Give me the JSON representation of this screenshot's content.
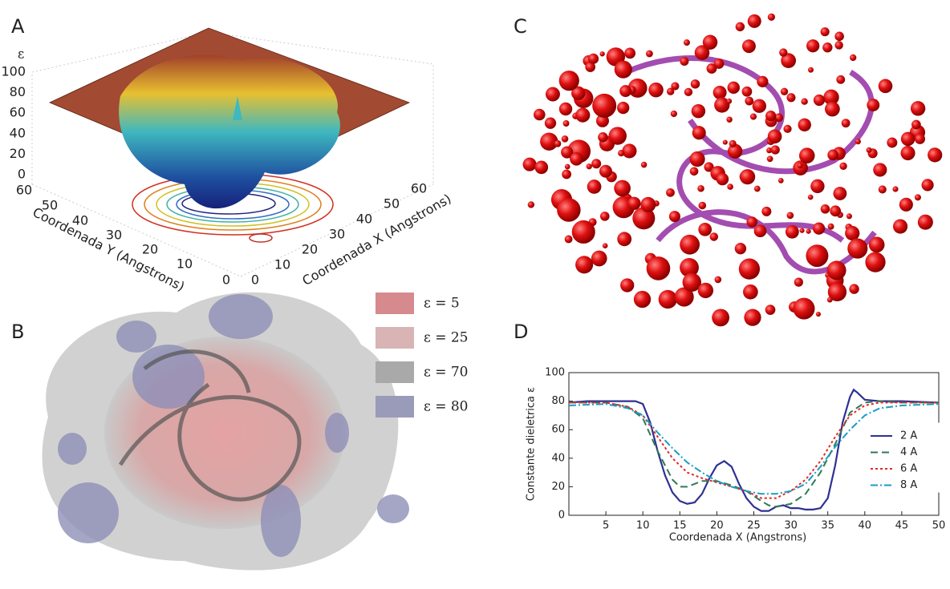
{
  "panel_a": {
    "label": "A",
    "z_label": "ε",
    "zticks": [
      0,
      20,
      40,
      60,
      80,
      100
    ],
    "y_label": "Coordenada Y (Angstrons)",
    "yticks": [
      0,
      10,
      20,
      30,
      40,
      50,
      60
    ],
    "x_label": "Coordenada X (Angstrons)",
    "xticks": [
      0,
      10,
      20,
      30,
      40,
      50,
      60
    ]
  },
  "panel_b": {
    "label": "B",
    "legend": [
      {
        "name": "ε = 5",
        "color": "#d78a8e"
      },
      {
        "name": "ε = 25",
        "color": "#d8b4b4"
      },
      {
        "name": "ε = 70",
        "color": "#a9a9a9"
      },
      {
        "name": "ε = 80",
        "color": "#9a9ab9"
      }
    ]
  },
  "panel_c": {
    "label": "C"
  },
  "chart_data": {
    "type": "line",
    "label": "D",
    "x_label": "Coordenada X (Angstrons)",
    "y_label": "Constante dieletrica ε",
    "xlim": [
      0,
      50
    ],
    "ylim": [
      0,
      100
    ],
    "xticks": [
      5,
      10,
      15,
      20,
      25,
      30,
      35,
      40,
      45,
      50
    ],
    "yticks": [
      0,
      20,
      40,
      60,
      80,
      100
    ],
    "legend": "right",
    "series": [
      {
        "name": "2 A",
        "color": "#2e3192",
        "line_style": "solid",
        "x": [
          0,
          2.5,
          5,
          7.5,
          9,
          10,
          11,
          12,
          13,
          14,
          15,
          16,
          17,
          18,
          19,
          20,
          21,
          22,
          23,
          24,
          25,
          26,
          27,
          28,
          29,
          30,
          31,
          32,
          33,
          34,
          35,
          36,
          37,
          38,
          38.5,
          39,
          40,
          42,
          45,
          50
        ],
        "values": [
          79,
          80,
          80,
          80,
          80,
          78,
          65,
          45,
          28,
          16,
          10,
          8,
          9,
          15,
          26,
          35,
          38,
          34,
          22,
          12,
          6,
          3,
          3,
          6,
          7,
          5,
          5,
          4,
          4,
          5,
          12,
          35,
          65,
          83,
          88,
          86,
          81,
          80,
          80,
          79
        ]
      },
      {
        "name": "4 A",
        "color": "#2f7a55",
        "line_style": "dashed",
        "x": [
          0,
          5,
          8,
          10,
          12,
          14,
          15,
          16,
          17,
          18,
          20,
          22,
          24,
          26,
          27,
          28,
          30,
          32,
          34,
          36,
          38,
          40,
          42,
          45,
          50
        ],
        "values": [
          79,
          79,
          76,
          68,
          45,
          25,
          20,
          20,
          22,
          24,
          24,
          21,
          17,
          10,
          7,
          6,
          8,
          15,
          30,
          50,
          72,
          79,
          80,
          79,
          79
        ]
      },
      {
        "name": "6 A",
        "color": "#e8262a",
        "line_style": "dotted",
        "x": [
          0,
          5,
          8,
          10,
          12,
          14,
          16,
          18,
          20,
          22,
          24,
          26,
          27,
          28,
          30,
          32,
          34,
          36,
          38,
          40,
          42,
          45,
          50
        ],
        "values": [
          79,
          79,
          76,
          70,
          55,
          40,
          30,
          26,
          23,
          20,
          17,
          12,
          12,
          12,
          17,
          25,
          38,
          55,
          70,
          77,
          79,
          79,
          79
        ]
      },
      {
        "name": "8 A",
        "color": "#1a9dc4",
        "line_style": "dashdot",
        "x": [
          0,
          5,
          8,
          10,
          12,
          14,
          16,
          18,
          20,
          22,
          24,
          26,
          28,
          30,
          32,
          34,
          36,
          38,
          40,
          42,
          45,
          50
        ],
        "values": [
          77,
          78,
          75,
          70,
          58,
          47,
          37,
          30,
          24,
          20,
          17,
          15,
          15,
          17,
          22,
          34,
          48,
          60,
          70,
          75,
          77,
          78
        ]
      }
    ]
  }
}
